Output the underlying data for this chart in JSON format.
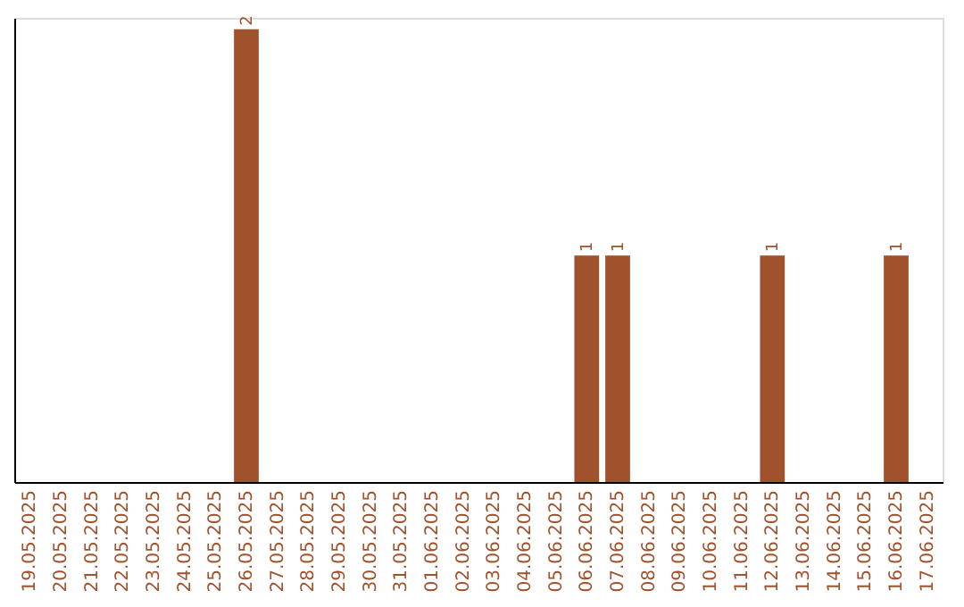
{
  "chart_data": {
    "type": "bar",
    "categories": [
      "19.05.2025",
      "20.05.2025",
      "21.05.2025",
      "22.05.2025",
      "23.05.2025",
      "24.05.2025",
      "25.05.2025",
      "26.05.2025",
      "27.05.2025",
      "28.05.2025",
      "29.05.2025",
      "30.05.2025",
      "31.05.2025",
      "01.06.2025",
      "02.06.2025",
      "03.06.2025",
      "04.06.2025",
      "05.06.2025",
      "06.06.2025",
      "07.06.2025",
      "08.06.2025",
      "09.06.2025",
      "10.06.2025",
      "11.06.2025",
      "12.06.2025",
      "13.06.2025",
      "14.06.2025",
      "15.06.2025",
      "16.06.2025",
      "17.06.2025"
    ],
    "values": [
      0,
      0,
      0,
      0,
      0,
      0,
      0,
      2,
      0,
      0,
      0,
      0,
      0,
      0,
      0,
      0,
      0,
      0,
      1,
      1,
      0,
      0,
      0,
      0,
      1,
      0,
      0,
      0,
      1,
      0
    ],
    "value_labels": [
      null,
      null,
      null,
      null,
      null,
      null,
      null,
      "2",
      null,
      null,
      null,
      null,
      null,
      null,
      null,
      null,
      null,
      null,
      "1",
      "1",
      null,
      null,
      null,
      null,
      "1",
      null,
      null,
      null,
      "1",
      null
    ],
    "color": "#a0522d",
    "ylim": [
      0,
      2.05
    ],
    "grid": false,
    "tick_labels": "x"
  }
}
